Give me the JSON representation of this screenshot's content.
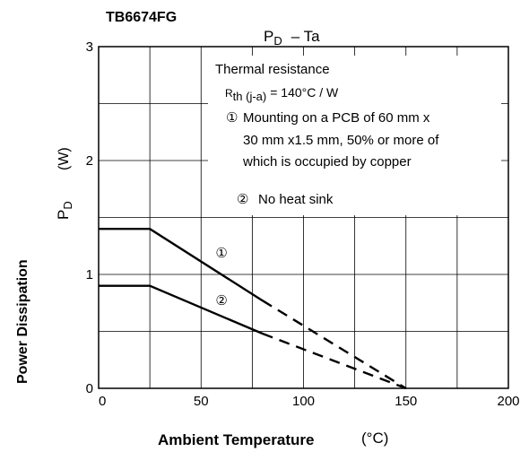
{
  "chart_data": {
    "type": "line",
    "part_number": "TB6674FG",
    "title": "P",
    "title_sub": "D",
    "title_rest": "– Ta",
    "xlabel": "Ambient Temperature",
    "xunit": "(°C)",
    "ylabel": "Power Dissipation",
    "ylabel_symbol": "P",
    "ylabel_symbol_sub": "D",
    "ylabel_unit": "(W)",
    "xlim": [
      0,
      200
    ],
    "ylim": [
      0,
      3
    ],
    "x_ticks": [
      "0",
      "50",
      "100",
      "150",
      "200"
    ],
    "y_ticks": [
      "0",
      "1",
      "2",
      "3"
    ],
    "grid": true,
    "annotation": {
      "heading": "Thermal resistance",
      "rth_symbol": "R",
      "rth_sub": "th (j-a)",
      "rth_value": "= 140°C / W",
      "note1_marker": "①",
      "note1_lines": [
        "Mounting on a PCB of 60 mm x",
        "30 mm x1.5 mm, 50% or more of",
        "which is occupied by copper"
      ],
      "note2_marker": "②",
      "note2_text": "No heat sink"
    },
    "series": [
      {
        "marker": "①",
        "label_at": [
          60,
          1.19
        ],
        "solid": [
          [
            0,
            1.4
          ],
          [
            25,
            1.4
          ],
          [
            80,
            0.77
          ]
        ],
        "dashed": [
          [
            80,
            0.77
          ],
          [
            150,
            0
          ]
        ]
      },
      {
        "marker": "②",
        "label_at": [
          60,
          0.77
        ],
        "solid": [
          [
            0,
            0.9
          ],
          [
            25,
            0.9
          ],
          [
            80,
            0.48
          ]
        ],
        "dashed": [
          [
            80,
            0.48
          ],
          [
            150,
            0
          ]
        ]
      }
    ]
  }
}
